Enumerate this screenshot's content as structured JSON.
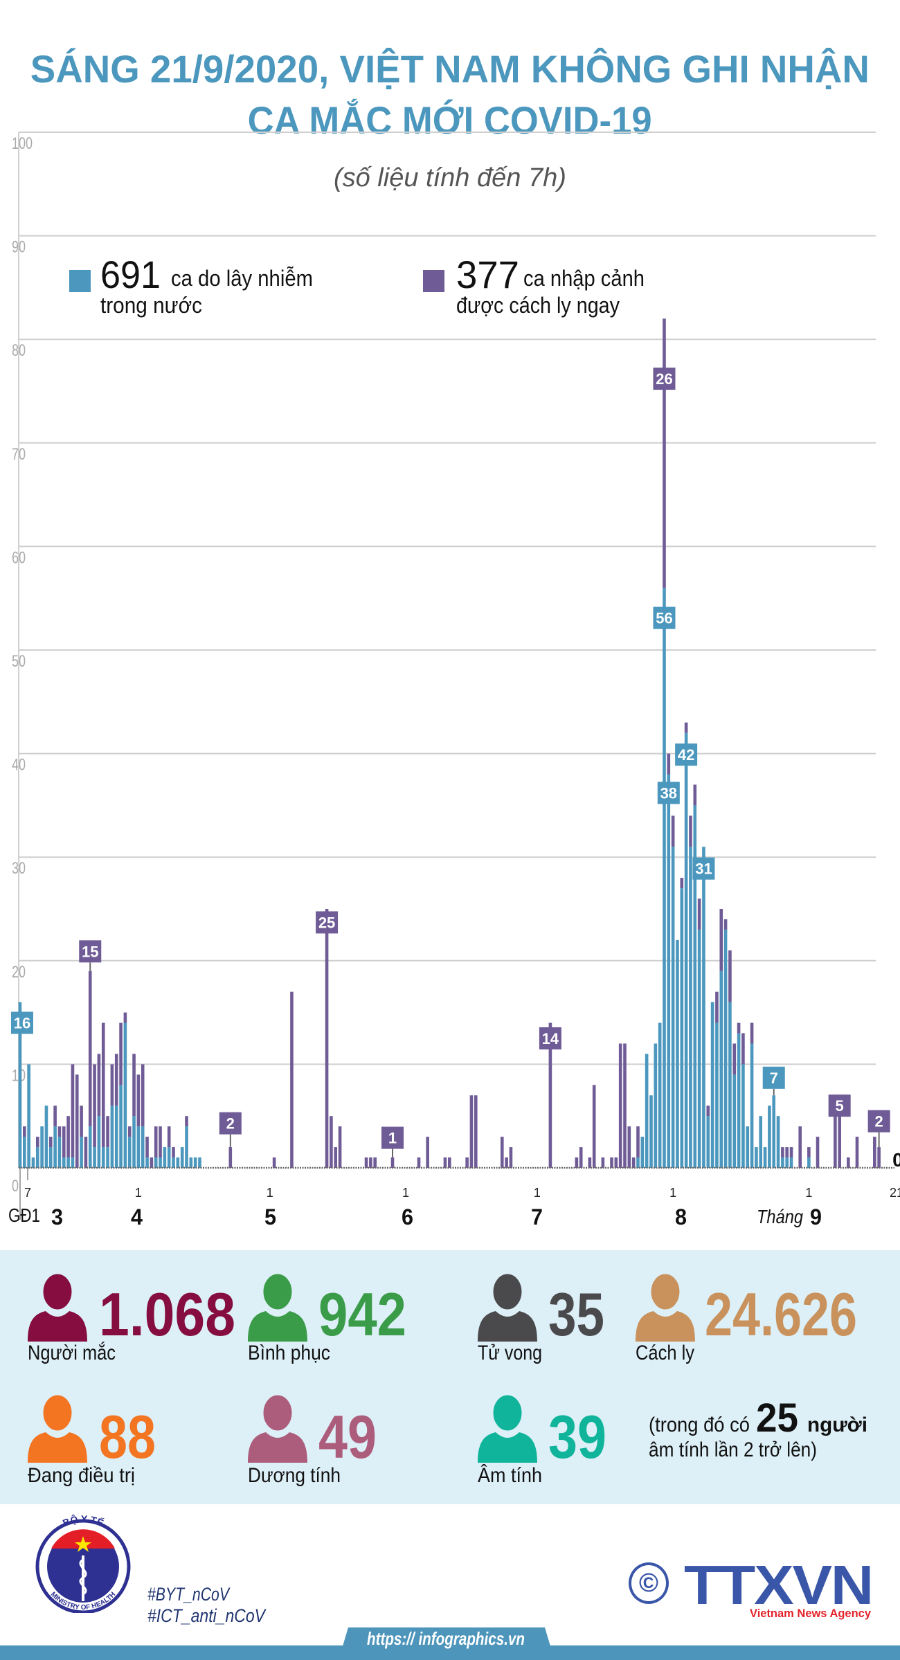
{
  "header": {
    "title_line1": "SÁNG 21/9/2020, VIỆT NAM KHÔNG GHI NHẬN",
    "title_line2": "CA MẮC MỚI COVID-19",
    "subtitle": "(số liệu tính đến 7h)"
  },
  "legend": [
    {
      "value": "691",
      "text1": "ca do lây nhiễm",
      "text2": "trong nước",
      "color": "#4b97bd"
    },
    {
      "value": "377",
      "text1": "ca nhập cảnh",
      "text2": "được cách ly ngay",
      "color": "#6f5b96"
    }
  ],
  "chart_data": {
    "type": "bar",
    "stacked": true,
    "ylim": [
      0,
      100
    ],
    "yticks": [
      0,
      10,
      20,
      30,
      40,
      50,
      60,
      70,
      80,
      90,
      100
    ],
    "grid": true,
    "series": [
      {
        "name": "ca do lây nhiễm trong nước",
        "key": "domestic",
        "color": "#4b97bd"
      },
      {
        "name": "ca nhập cảnh được cách ly ngay",
        "key": "imported",
        "color": "#6f5b96"
      }
    ],
    "bar_fields": [
      "date",
      "domestic",
      "imported"
    ],
    "bars": [
      [
        "GĐ1",
        16,
        0
      ],
      [
        "3/6",
        3,
        1
      ],
      [
        "3/7",
        10,
        0
      ],
      [
        "3/8",
        1,
        0
      ],
      [
        "3/9",
        2,
        1
      ],
      [
        "3/10",
        4,
        0
      ],
      [
        "3/11",
        6,
        0
      ],
      [
        "3/12",
        2,
        1
      ],
      [
        "3/13",
        4,
        2
      ],
      [
        "3/14",
        3,
        1
      ],
      [
        "3/15",
        1,
        3
      ],
      [
        "3/16",
        1,
        4
      ],
      [
        "3/17",
        1,
        9
      ],
      [
        "3/18",
        0,
        9
      ],
      [
        "3/19",
        3,
        3
      ],
      [
        "3/20",
        0,
        3
      ],
      [
        "3/21",
        4,
        15
      ],
      [
        "3/22",
        2,
        8
      ],
      [
        "3/23",
        5,
        6
      ],
      [
        "3/24",
        2,
        12
      ],
      [
        "3/25",
        2,
        3
      ],
      [
        "3/26",
        6,
        4
      ],
      [
        "3/27",
        6,
        5
      ],
      [
        "3/28",
        8,
        6
      ],
      [
        "3/29",
        14,
        1
      ],
      [
        "3/30",
        3,
        1
      ],
      [
        "3/31",
        5,
        6
      ],
      [
        "4/1",
        4,
        5
      ],
      [
        "4/2",
        4,
        6
      ],
      [
        "4/3",
        1,
        2
      ],
      [
        "4/4",
        0,
        1
      ],
      [
        "4/5",
        1,
        3
      ],
      [
        "4/6",
        1,
        3
      ],
      [
        "4/7",
        2,
        0
      ],
      [
        "4/8",
        2,
        2
      ],
      [
        "4/9",
        1,
        1
      ],
      [
        "4/10",
        1,
        0
      ],
      [
        "4/11",
        2,
        0
      ],
      [
        "4/12",
        4,
        1
      ],
      [
        "4/13",
        1,
        0
      ],
      [
        "4/14",
        1,
        0
      ],
      [
        "4/15",
        1,
        0
      ],
      [
        "4/22",
        0,
        2
      ],
      [
        "5/2",
        0,
        1
      ],
      [
        "5/6",
        0,
        17
      ],
      [
        "5/14",
        0,
        25
      ],
      [
        "5/15",
        0,
        5
      ],
      [
        "5/16",
        0,
        2
      ],
      [
        "5/17",
        0,
        4
      ],
      [
        "5/23",
        0,
        1
      ],
      [
        "5/24",
        0,
        1
      ],
      [
        "5/25",
        0,
        1
      ],
      [
        "5/29",
        0,
        1
      ],
      [
        "6/4",
        0,
        1
      ],
      [
        "6/6",
        0,
        3
      ],
      [
        "6/10",
        0,
        1
      ],
      [
        "6/11",
        0,
        1
      ],
      [
        "6/15",
        0,
        1
      ],
      [
        "6/16",
        0,
        7
      ],
      [
        "6/17",
        0,
        7
      ],
      [
        "6/23",
        0,
        3
      ],
      [
        "6/24",
        0,
        1
      ],
      [
        "6/25",
        0,
        2
      ],
      [
        "7/4",
        0,
        14
      ],
      [
        "7/10",
        0,
        1
      ],
      [
        "7/11",
        0,
        2
      ],
      [
        "7/13",
        0,
        1
      ],
      [
        "7/14",
        0,
        8
      ],
      [
        "7/16",
        0,
        1
      ],
      [
        "7/18",
        0,
        1
      ],
      [
        "7/19",
        0,
        1
      ],
      [
        "7/20",
        0,
        12
      ],
      [
        "7/21",
        0,
        12
      ],
      [
        "7/22",
        0,
        4
      ],
      [
        "7/23",
        0,
        1
      ],
      [
        "7/24",
        1,
        3
      ],
      [
        "7/25",
        3,
        0
      ],
      [
        "7/26",
        11,
        0
      ],
      [
        "7/27",
        7,
        0
      ],
      [
        "7/28",
        12,
        0
      ],
      [
        "7/29",
        14,
        0
      ],
      [
        "7/30",
        56,
        26
      ],
      [
        "7/31",
        38,
        2
      ],
      [
        "8/1",
        31,
        3
      ],
      [
        "8/2",
        22,
        0
      ],
      [
        "8/3",
        27,
        1
      ],
      [
        "8/4",
        42,
        1
      ],
      [
        "8/5",
        31,
        3
      ],
      [
        "8/6",
        35,
        2
      ],
      [
        "8/7",
        23,
        3
      ],
      [
        "8/8",
        31,
        0
      ],
      [
        "8/9",
        5,
        1
      ],
      [
        "8/10",
        16,
        0
      ],
      [
        "8/11",
        14,
        3
      ],
      [
        "8/12",
        19,
        6
      ],
      [
        "8/13",
        23,
        1
      ],
      [
        "8/14",
        16,
        5
      ],
      [
        "8/15",
        9,
        3
      ],
      [
        "8/16",
        13,
        1
      ],
      [
        "8/17",
        10,
        3
      ],
      [
        "8/18",
        4,
        0
      ],
      [
        "8/19",
        12,
        2
      ],
      [
        "8/20",
        2,
        0
      ],
      [
        "8/21",
        5,
        0
      ],
      [
        "8/22",
        2,
        0
      ],
      [
        "8/23",
        6,
        0
      ],
      [
        "8/24",
        7,
        0
      ],
      [
        "8/25",
        5,
        0
      ],
      [
        "8/26",
        1,
        1
      ],
      [
        "8/27",
        1,
        1
      ],
      [
        "8/28",
        1,
        1
      ],
      [
        "8/30",
        0,
        4
      ],
      [
        "9/1",
        1,
        1
      ],
      [
        "9/3",
        0,
        3
      ],
      [
        "9/7",
        0,
        5
      ],
      [
        "9/8",
        0,
        5
      ],
      [
        "9/10",
        0,
        1
      ],
      [
        "9/12",
        0,
        3
      ],
      [
        "9/16",
        0,
        3
      ],
      [
        "9/17",
        0,
        2
      ],
      [
        "9/21",
        0,
        0
      ]
    ],
    "annotations": [
      {
        "date": "GĐ1",
        "series": "domestic",
        "text": "16"
      },
      {
        "date": "3/21",
        "series": "imported",
        "text": "15"
      },
      {
        "date": "4/22",
        "series": "imported",
        "text": "2"
      },
      {
        "date": "5/14",
        "series": "imported",
        "text": "25"
      },
      {
        "date": "5/29",
        "series": "imported",
        "text": "1"
      },
      {
        "date": "7/4",
        "series": "imported",
        "text": "14"
      },
      {
        "date": "7/30",
        "series": "imported",
        "text": "26"
      },
      {
        "date": "7/30",
        "series": "domestic",
        "text": "56"
      },
      {
        "date": "7/31",
        "series": "domestic",
        "text": "38"
      },
      {
        "date": "8/4",
        "series": "domestic",
        "text": "42"
      },
      {
        "date": "8/8",
        "series": "domestic",
        "text": "31"
      },
      {
        "date": "8/24",
        "series": "domestic",
        "text": "7"
      },
      {
        "date": "9/8",
        "series": "imported",
        "text": "5"
      },
      {
        "date": "9/17",
        "series": "imported",
        "text": "2"
      },
      {
        "date": "9/21",
        "series": "none",
        "text": "0"
      }
    ],
    "x_ticks": [
      {
        "date": "3/7",
        "label": "7"
      },
      {
        "date": "4/1",
        "label": "1"
      },
      {
        "date": "5/1",
        "label": "1"
      },
      {
        "date": "6/1",
        "label": "1"
      },
      {
        "date": "7/1",
        "label": "1"
      },
      {
        "date": "8/1",
        "label": "1"
      },
      {
        "date": "9/1",
        "label": "1"
      },
      {
        "date": "9/21",
        "label": "21"
      }
    ],
    "months": {
      "phase1": "GĐ1",
      "m3": "3",
      "m4": "4",
      "m5": "5",
      "m6": "6",
      "m7": "7",
      "m8": "8",
      "month_word": "Tháng",
      "m9": "9"
    }
  },
  "stats": {
    "items": [
      {
        "value": "1.068",
        "label": "Người mắc",
        "color": "#850d3f"
      },
      {
        "value": "942",
        "label": "Bình phục",
        "color": "#3a9c48"
      },
      {
        "value": "35",
        "label": "Tử vong",
        "color": "#4a4a4c"
      },
      {
        "value": "24.626",
        "label": "Cách ly",
        "color": "#c9925c"
      },
      {
        "value": "88",
        "label": "Đang điều trị",
        "color": "#f37421"
      },
      {
        "value": "49",
        "label": "Dương tính",
        "color": "#ad5d7c"
      },
      {
        "value": "39",
        "label": "Âm tính",
        "color": "#0fb49a"
      }
    ],
    "note": {
      "prefix": "(trong đó có",
      "number": "25",
      "suffix": "người",
      "line2": "âm tính lần 2 trở lên)"
    }
  },
  "footer": {
    "ministry_logo_top": "BỘ Y TẾ",
    "ministry_logo_bottom": "MINISTRY OF HEALTH",
    "hashtags": [
      "#BYT_nCoV",
      "#ICT_anti_nCoV"
    ],
    "copyright": "©",
    "agency_logo": "TTXVN",
    "agency_name": "Vietnam News Agency",
    "url": "https:// infographics.vn"
  }
}
